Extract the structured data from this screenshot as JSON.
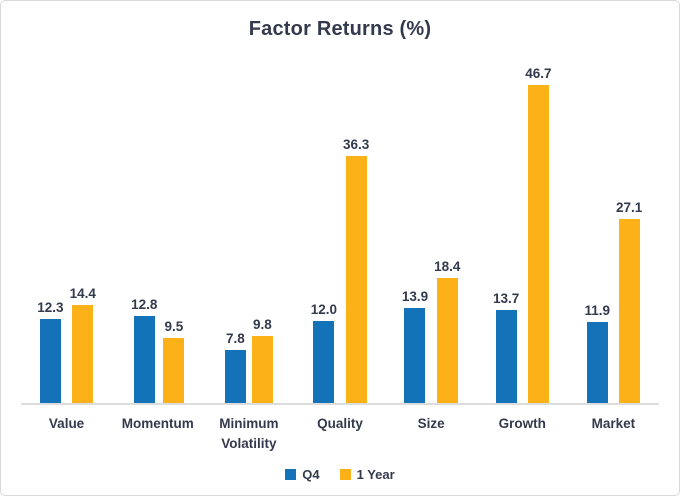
{
  "title": "Factor Returns (%)",
  "colors": {
    "q4_blue": "#1473B8",
    "one_year_amber": "#FBB117",
    "text": "#343A4D",
    "axis_line": "#DCDCDC",
    "frame_border": "#D9D9D9"
  },
  "legend": {
    "position": "bottom",
    "items": [
      {
        "label": "Q4",
        "color": "#1473B8"
      },
      {
        "label": "1 Year",
        "color": "#FBB117"
      }
    ]
  },
  "chart_data": {
    "type": "bar",
    "title": "Factor Returns (%)",
    "categories": [
      "Value",
      "Momentum",
      "Minimum Volatility",
      "Quality",
      "Size",
      "Growth",
      "Market"
    ],
    "series": [
      {
        "name": "Q4",
        "color": "#1473B8",
        "values": [
          12.3,
          12.8,
          7.8,
          12.0,
          13.9,
          13.7,
          11.9
        ]
      },
      {
        "name": "1 Year",
        "color": "#FBB117",
        "values": [
          14.4,
          9.5,
          9.8,
          36.3,
          18.4,
          46.7,
          27.1
        ]
      }
    ],
    "data_labels": true,
    "data_label_decimals": 1,
    "xlabel": "",
    "ylabel": "",
    "ylim": [
      0,
      50
    ],
    "grid": false,
    "y_axis_visible": false,
    "legend_position": "bottom"
  }
}
